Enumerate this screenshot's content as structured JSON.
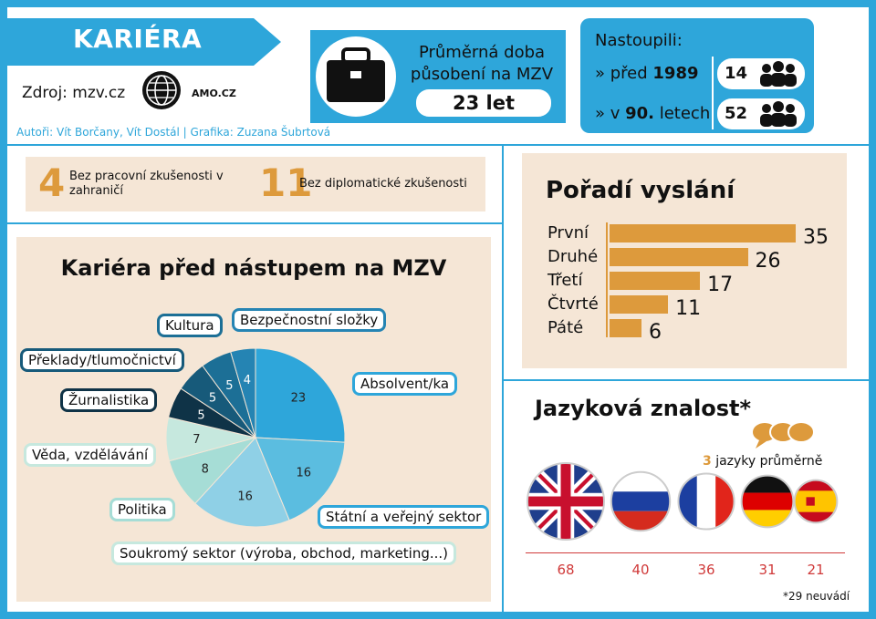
{
  "header": {
    "title": "KARIÉRA",
    "source": "Zdroj: mzv.cz",
    "logo_text": "AMO.CZ",
    "authors": "Autoři: Vít Borčany, Vít Dostál | Grafika: Zuzana Šubrtová"
  },
  "tenure": {
    "label_line1": "Průměrná doba",
    "label_line2": "působení na MZV",
    "value": "23 let"
  },
  "joined": {
    "title": "Nastoupili:",
    "rows": [
      {
        "prefix": "» před ",
        "era": "1989",
        "count": "14"
      },
      {
        "prefix": "» v ",
        "era": "90.",
        "suffix": " letech",
        "count": "52"
      }
    ]
  },
  "stats": [
    {
      "number": "4",
      "label": "Bez pracovní zkušenosti v zahraničí"
    },
    {
      "number": "11",
      "label": "Bez diplomatické zkušenosti"
    }
  ],
  "colors": {
    "accent_blue": "#2ea6da",
    "panel_beige": "#f5e6d6",
    "bar_orange": "#dd9a3c",
    "value_red": "#d03a3a"
  },
  "chart_data": [
    {
      "type": "pie",
      "title": "Kariéra před nástupem na MZV",
      "slices": [
        {
          "label": "Absolvent/ka",
          "value": 23,
          "color": "#2ea6da"
        },
        {
          "label": "Státní a veřejný sektor",
          "value": 16,
          "color": "#5bbde0"
        },
        {
          "label": "Soukromý sektor (výroba, obchod, marketing...)",
          "value": 16,
          "color": "#8fd0e6"
        },
        {
          "label": "Politika",
          "value": 8,
          "color": "#a6ddd6"
        },
        {
          "label": "Věda, vzdělávání",
          "value": 7,
          "color": "#c6e8de"
        },
        {
          "label": "Žurnalistika",
          "value": 5,
          "color": "#0f3347"
        },
        {
          "label": "Překlady/tlumočnictví",
          "value": 5,
          "color": "#175a7a"
        },
        {
          "label": "Kultura",
          "value": 5,
          "color": "#1c6f96"
        },
        {
          "label": "Bezpečnostní složky",
          "value": 4,
          "color": "#2584b3"
        }
      ]
    },
    {
      "type": "bar",
      "title": "Pořadí vyslání",
      "categories": [
        "První",
        "Druhé",
        "Třetí",
        "Čtvrté",
        "Páté"
      ],
      "values": [
        35,
        26,
        17,
        11,
        6
      ],
      "xlim": [
        0,
        35
      ]
    },
    {
      "type": "bar",
      "title": "Jazyková znalost*",
      "categories": [
        "angličtina",
        "ruština",
        "francouzština",
        "němčina",
        "španělština"
      ],
      "values": [
        68,
        40,
        36,
        31,
        21
      ],
      "annotation_number": "3",
      "annotation_text": " jazyky průměrně",
      "note": "*29 neuvádí"
    }
  ]
}
